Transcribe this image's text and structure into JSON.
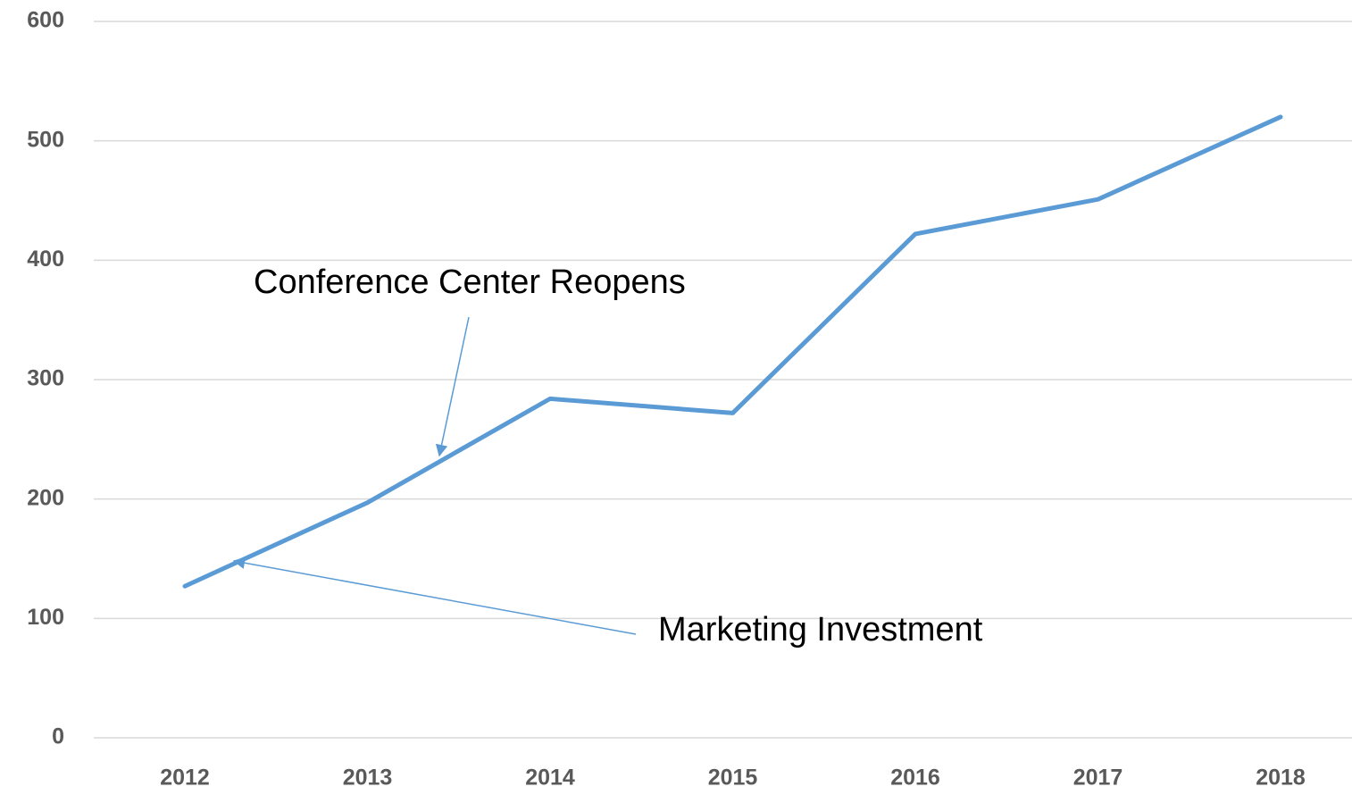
{
  "chart_data": {
    "type": "line",
    "categories": [
      "2012",
      "2013",
      "2014",
      "2015",
      "2016",
      "2017",
      "2018"
    ],
    "series": [
      {
        "color": "#5b9bd5",
        "values": [
          127,
          197,
          284,
          272,
          422,
          451,
          520
        ]
      }
    ],
    "ylim": [
      0,
      600
    ],
    "yticks": [
      0,
      100,
      200,
      300,
      400,
      500,
      600
    ],
    "grid": true,
    "annotations": [
      "Conference Center Reopens",
      "Marketing Investment"
    ]
  }
}
